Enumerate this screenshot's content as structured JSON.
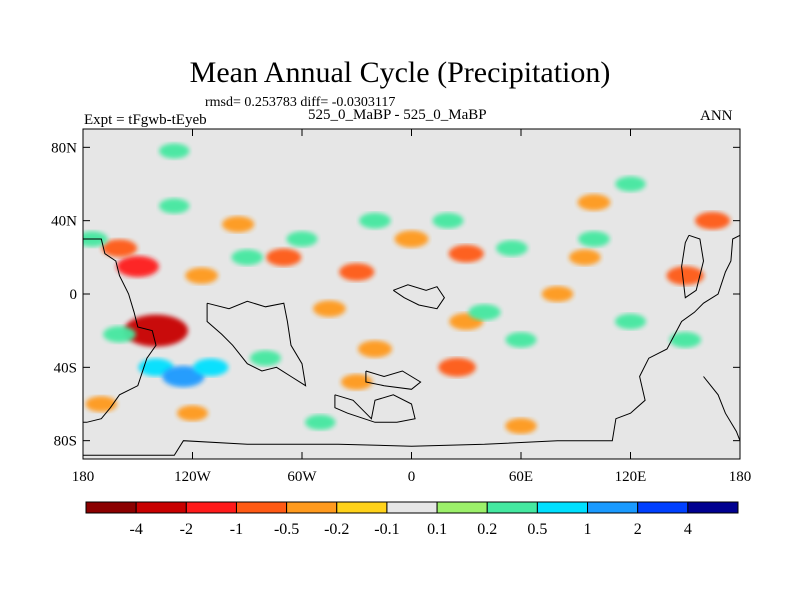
{
  "chart_data": {
    "type": "heatmap",
    "title": "Mean Annual Cycle (Precipitation)",
    "stats_line": "rmsd= 0.253783 diff= -0.0303117",
    "left_label": "Expt = tFgwb-tEyeb",
    "center_label": "525_0_MaBP - 525_0_MaBP",
    "right_label": "ANN",
    "x_ticks": [
      "180",
      "120W",
      "60W",
      "0",
      "60E",
      "120E",
      "180"
    ],
    "x_tick_values": [
      -180,
      -120,
      -60,
      0,
      60,
      120,
      180
    ],
    "y_ticks": [
      "80N",
      "40N",
      "0",
      "40S",
      "80S"
    ],
    "y_tick_values": [
      80,
      40,
      0,
      -40,
      -80
    ],
    "xlim": [
      -180,
      180
    ],
    "ylim": [
      -90,
      90
    ],
    "colorbar": {
      "labels": [
        "-4",
        "-2",
        "-1",
        "-0.5",
        "-0.2",
        "-0.1",
        "0.1",
        "0.2",
        "0.5",
        "1",
        "2",
        "4"
      ],
      "colors": [
        "#8b0000",
        "#c80000",
        "#ff1a1a",
        "#ff5a14",
        "#ff9a1e",
        "#ffd21a",
        "#e6e6e6",
        "#9cf06a",
        "#44e8a0",
        "#00e0ff",
        "#1a9aff",
        "#0040ff",
        "#000090"
      ]
    },
    "anomaly_regions": [
      {
        "lon": -150,
        "lat": 15,
        "value": -1.2
      },
      {
        "lon": -140,
        "lat": -20,
        "value": -3
      },
      {
        "lon": -160,
        "lat": 25,
        "value": -0.6
      },
      {
        "lon": -115,
        "lat": 10,
        "value": -0.4
      },
      {
        "lon": -95,
        "lat": 38,
        "value": -0.35
      },
      {
        "lon": -70,
        "lat": 20,
        "value": -0.6
      },
      {
        "lon": -45,
        "lat": -8,
        "value": -0.4
      },
      {
        "lon": -30,
        "lat": 12,
        "value": -0.6
      },
      {
        "lon": -20,
        "lat": -30,
        "value": -0.5
      },
      {
        "lon": -30,
        "lat": -48,
        "value": -0.3
      },
      {
        "lon": 0,
        "lat": 30,
        "value": -0.5
      },
      {
        "lon": 30,
        "lat": 22,
        "value": -0.6
      },
      {
        "lon": 30,
        "lat": -15,
        "value": -0.5
      },
      {
        "lon": 25,
        "lat": -40,
        "value": -0.8
      },
      {
        "lon": 80,
        "lat": 0,
        "value": -0.3
      },
      {
        "lon": 100,
        "lat": 50,
        "value": -0.4
      },
      {
        "lon": 95,
        "lat": 20,
        "value": -0.3
      },
      {
        "lon": 150,
        "lat": 10,
        "value": -0.8
      },
      {
        "lon": 165,
        "lat": 40,
        "value": -0.6
      },
      {
        "lon": -170,
        "lat": -60,
        "value": -0.3
      },
      {
        "lon": -120,
        "lat": -65,
        "value": -0.25
      },
      {
        "lon": 60,
        "lat": -72,
        "value": -0.3
      },
      {
        "lon": -160,
        "lat": -22,
        "value": 0.4
      },
      {
        "lon": -140,
        "lat": -40,
        "value": 0.6
      },
      {
        "lon": -125,
        "lat": -45,
        "value": 1.2
      },
      {
        "lon": -110,
        "lat": -40,
        "value": 0.6
      },
      {
        "lon": -130,
        "lat": 48,
        "value": 0.2
      },
      {
        "lon": -90,
        "lat": 20,
        "value": 0.3
      },
      {
        "lon": -80,
        "lat": -35,
        "value": 0.25
      },
      {
        "lon": -60,
        "lat": 30,
        "value": 0.25
      },
      {
        "lon": -20,
        "lat": 40,
        "value": 0.3
      },
      {
        "lon": 20,
        "lat": 40,
        "value": 0.25
      },
      {
        "lon": 40,
        "lat": -10,
        "value": 0.35
      },
      {
        "lon": 55,
        "lat": 25,
        "value": 0.3
      },
      {
        "lon": 60,
        "lat": -25,
        "value": 0.25
      },
      {
        "lon": 100,
        "lat": 30,
        "value": 0.3
      },
      {
        "lon": 120,
        "lat": -15,
        "value": 0.25
      },
      {
        "lon": 120,
        "lat": 60,
        "value": 0.2
      },
      {
        "lon": -130,
        "lat": 78,
        "value": 0.2
      },
      {
        "lon": -50,
        "lat": -70,
        "value": 0.2
      },
      {
        "lon": 150,
        "lat": -25,
        "value": 0.3
      },
      {
        "lon": -175,
        "lat": 30,
        "value": 0.25
      }
    ],
    "land_outlines": [
      [
        [
          -180,
          30
        ],
        [
          -170,
          30
        ],
        [
          -168,
          22
        ],
        [
          -162,
          18
        ],
        [
          -160,
          10
        ],
        [
          -155,
          0
        ],
        [
          -152,
          -10
        ],
        [
          -150,
          -18
        ],
        [
          -142,
          -20
        ],
        [
          -140,
          -28
        ],
        [
          -145,
          -35
        ],
        [
          -150,
          -50
        ],
        [
          -160,
          -55
        ],
        [
          -165,
          -62
        ],
        [
          -170,
          -68
        ],
        [
          -178,
          -70
        ],
        [
          -180,
          -70
        ]
      ],
      [
        [
          -180,
          -88
        ],
        [
          -130,
          -88
        ],
        [
          -125,
          -80
        ],
        [
          -90,
          -82
        ],
        [
          -40,
          -82
        ],
        [
          0,
          -83
        ],
        [
          40,
          -82
        ],
        [
          80,
          -80
        ],
        [
          110,
          -80
        ],
        [
          112,
          -68
        ],
        [
          120,
          -65
        ],
        [
          128,
          -58
        ],
        [
          125,
          -45
        ],
        [
          130,
          -35
        ],
        [
          140,
          -30
        ],
        [
          148,
          -15
        ],
        [
          155,
          -10
        ],
        [
          160,
          -5
        ],
        [
          168,
          0
        ],
        [
          172,
          12
        ],
        [
          175,
          18
        ],
        [
          176,
          30
        ],
        [
          180,
          32
        ]
      ],
      [
        [
          -112,
          -5
        ],
        [
          -100,
          -8
        ],
        [
          -90,
          -4
        ],
        [
          -80,
          -7
        ],
        [
          -70,
          -5
        ],
        [
          -68,
          -15
        ],
        [
          -66,
          -28
        ],
        [
          -60,
          -38
        ],
        [
          -58,
          -50
        ],
        [
          -66,
          -45
        ],
        [
          -74,
          -40
        ],
        [
          -82,
          -42
        ],
        [
          -90,
          -38
        ],
        [
          -98,
          -28
        ],
        [
          -104,
          -22
        ],
        [
          -112,
          -15
        ],
        [
          -112,
          -5
        ]
      ],
      [
        [
          -42,
          -55
        ],
        [
          -32,
          -58
        ],
        [
          -25,
          -65
        ],
        [
          -22,
          -68
        ],
        [
          -20,
          -58
        ],
        [
          -10,
          -55
        ],
        [
          0,
          -60
        ],
        [
          2,
          -68
        ],
        [
          -8,
          -70
        ],
        [
          -20,
          -70
        ],
        [
          -35,
          -65
        ],
        [
          -42,
          -62
        ],
        [
          -42,
          -55
        ]
      ],
      [
        [
          -10,
          2
        ],
        [
          -2,
          5
        ],
        [
          8,
          2
        ],
        [
          14,
          4
        ],
        [
          18,
          -2
        ],
        [
          14,
          -8
        ],
        [
          4,
          -6
        ],
        [
          -4,
          -2
        ],
        [
          -10,
          2
        ]
      ],
      [
        [
          -25,
          -42
        ],
        [
          -15,
          -45
        ],
        [
          -5,
          -42
        ],
        [
          5,
          -48
        ],
        [
          0,
          -52
        ],
        [
          -15,
          -50
        ],
        [
          -25,
          -48
        ],
        [
          -25,
          -42
        ]
      ],
      [
        [
          152,
          32
        ],
        [
          158,
          30
        ],
        [
          160,
          18
        ],
        [
          156,
          2
        ],
        [
          150,
          -2
        ],
        [
          148,
          15
        ],
        [
          150,
          28
        ],
        [
          152,
          32
        ]
      ],
      [
        [
          160,
          -45
        ],
        [
          168,
          -55
        ],
        [
          172,
          -65
        ],
        [
          178,
          -75
        ],
        [
          180,
          -80
        ]
      ]
    ]
  }
}
